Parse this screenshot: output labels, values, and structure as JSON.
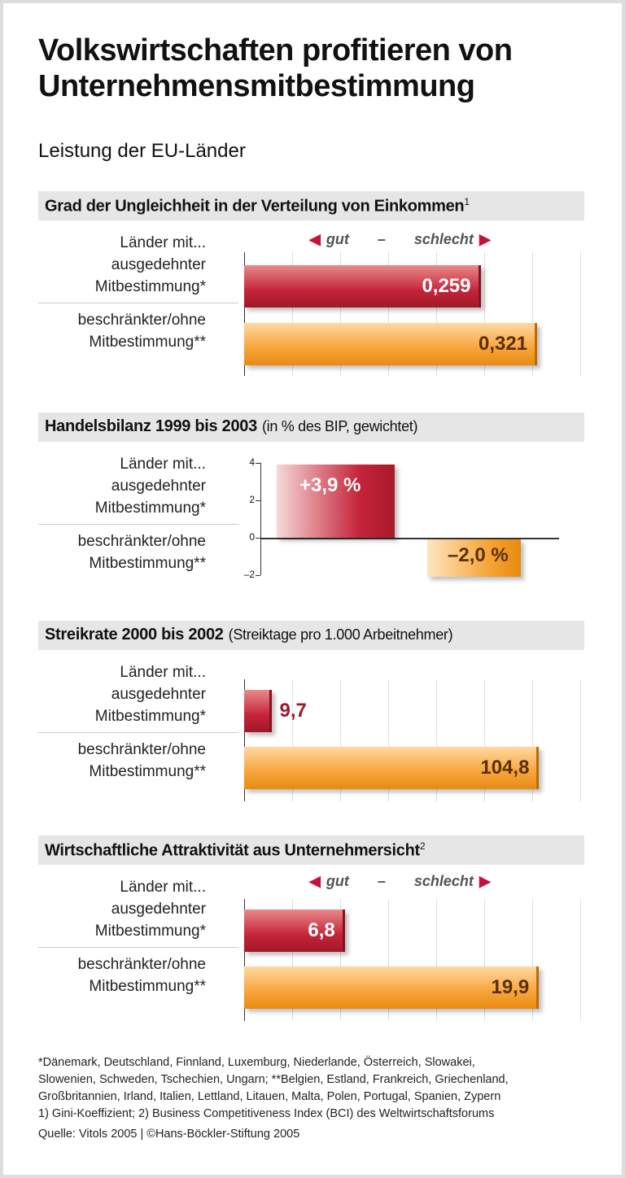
{
  "title": "Volkswirtschaften profitieren von Unternehmensmitbestimmung",
  "subtitle": "Leistung der EU-Länder",
  "labels": {
    "l1": "Länder mit...",
    "l2": "ausgedehnter",
    "l3": "Mitbestimmung*",
    "l4": "beschränkter/ohne",
    "l5": "Mitbestimmung**"
  },
  "legend": {
    "gut": "gut",
    "dash": "–",
    "schlecht": "schlecht"
  },
  "colors": {
    "extensive": "#c5243a",
    "limited": "#f5a030"
  },
  "chart_data": [
    {
      "type": "bar",
      "title": "Grad der Ungleichheit in der Verteilung von Einkommen",
      "footnote": "1",
      "categories": [
        "ausgedehnter Mitbestimmung*",
        "beschränkter/ohne Mitbestimmung**"
      ],
      "values": [
        0.259,
        0.321
      ],
      "value_labels": [
        "0,259",
        "0,321"
      ],
      "legend": "gut – schlecht"
    },
    {
      "type": "bar",
      "title": "Handelsbilanz 1999 bis 2003",
      "note": "(in % des BIP, gewichtet)",
      "categories": [
        "ausgedehnter Mitbestimmung*",
        "beschränkter/ohne Mitbestimmung**"
      ],
      "values": [
        3.9,
        -2.0
      ],
      "value_labels": [
        "+3,9 %",
        "–2,0 %"
      ],
      "ylim": [
        -2,
        4
      ],
      "ticks": [
        "4",
        "2",
        "0",
        "–2"
      ]
    },
    {
      "type": "bar",
      "title": "Streikrate 2000 bis 2002",
      "note": "(Streiktage pro 1.000 Arbeitnehmer)",
      "categories": [
        "ausgedehnter Mitbestimmung*",
        "beschränkter/ohne Mitbestimmung**"
      ],
      "values": [
        9.7,
        104.8
      ],
      "value_labels": [
        "9,7",
        "104,8"
      ]
    },
    {
      "type": "bar",
      "title": "Wirtschaftliche Attraktivität aus Unternehmersicht",
      "footnote": "2",
      "categories": [
        "ausgedehnter Mitbestimmung*",
        "beschränkter/ohne Mitbestimmung**"
      ],
      "values": [
        6.8,
        19.9
      ],
      "value_labels": [
        "6,8",
        "19,9"
      ],
      "legend": "gut – schlecht"
    }
  ],
  "footer": {
    "f1": "*Dänemark, Deutschland, Finnland, Luxemburg, Niederlande, Österreich, Slowakei,",
    "f2": "Slowenien, Schweden, Tschechien, Ungarn; **Belgien, Estland, Frankreich, Griechenland,",
    "f3": "Großbritannien, Irland, Italien, Lettland, Litauen, Malta, Polen, Portugal, Spanien, Zypern",
    "f4": "1) Gini-Koeffizient; 2) Business Competitiveness Index (BCI) des Weltwirtschaftsforums",
    "source": "Quelle: Vitols 2005 | ©Hans-Böckler-Stiftung 2005"
  }
}
